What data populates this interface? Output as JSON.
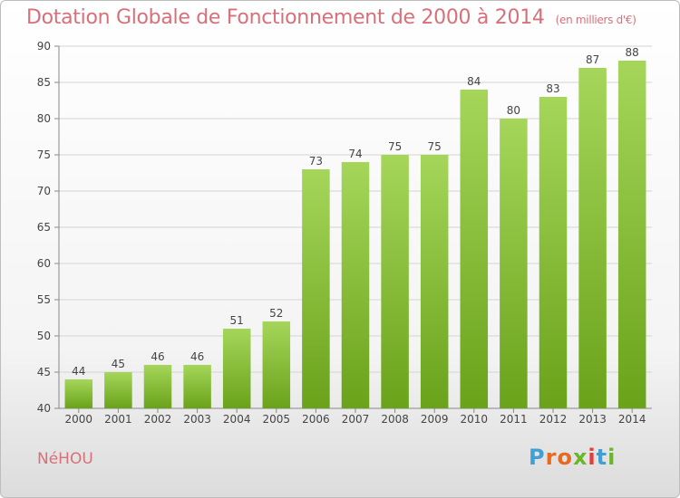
{
  "title": "Dotation Globale de Fonctionnement de 2000 à 2014",
  "subtitle": "(en milliers d'€)",
  "place": "NéHOU",
  "logo": {
    "letters": [
      "P",
      "r",
      "o",
      "x",
      "i",
      "t",
      "i"
    ],
    "colors": [
      "#3fa0d8",
      "#e86a1c",
      "#e86a1c",
      "#6ab62a",
      "#e83a3a",
      "#3fa0d8",
      "#6ab62a"
    ]
  },
  "colors": {
    "bar_light": "#a5d65a",
    "bar_dark": "#6aa21a",
    "title": "#d8707a"
  },
  "chart_data": {
    "type": "bar",
    "categories": [
      "2000",
      "2001",
      "2002",
      "2003",
      "2004",
      "2005",
      "2006",
      "2007",
      "2008",
      "2009",
      "2010",
      "2011",
      "2012",
      "2013",
      "2014"
    ],
    "values": [
      44,
      45,
      46,
      46,
      51,
      52,
      73,
      74,
      75,
      75,
      84,
      80,
      83,
      87,
      88
    ],
    "ylim": [
      40,
      90
    ],
    "yticks": [
      40,
      45,
      50,
      55,
      60,
      65,
      70,
      75,
      80,
      85,
      90
    ],
    "grid": true
  }
}
